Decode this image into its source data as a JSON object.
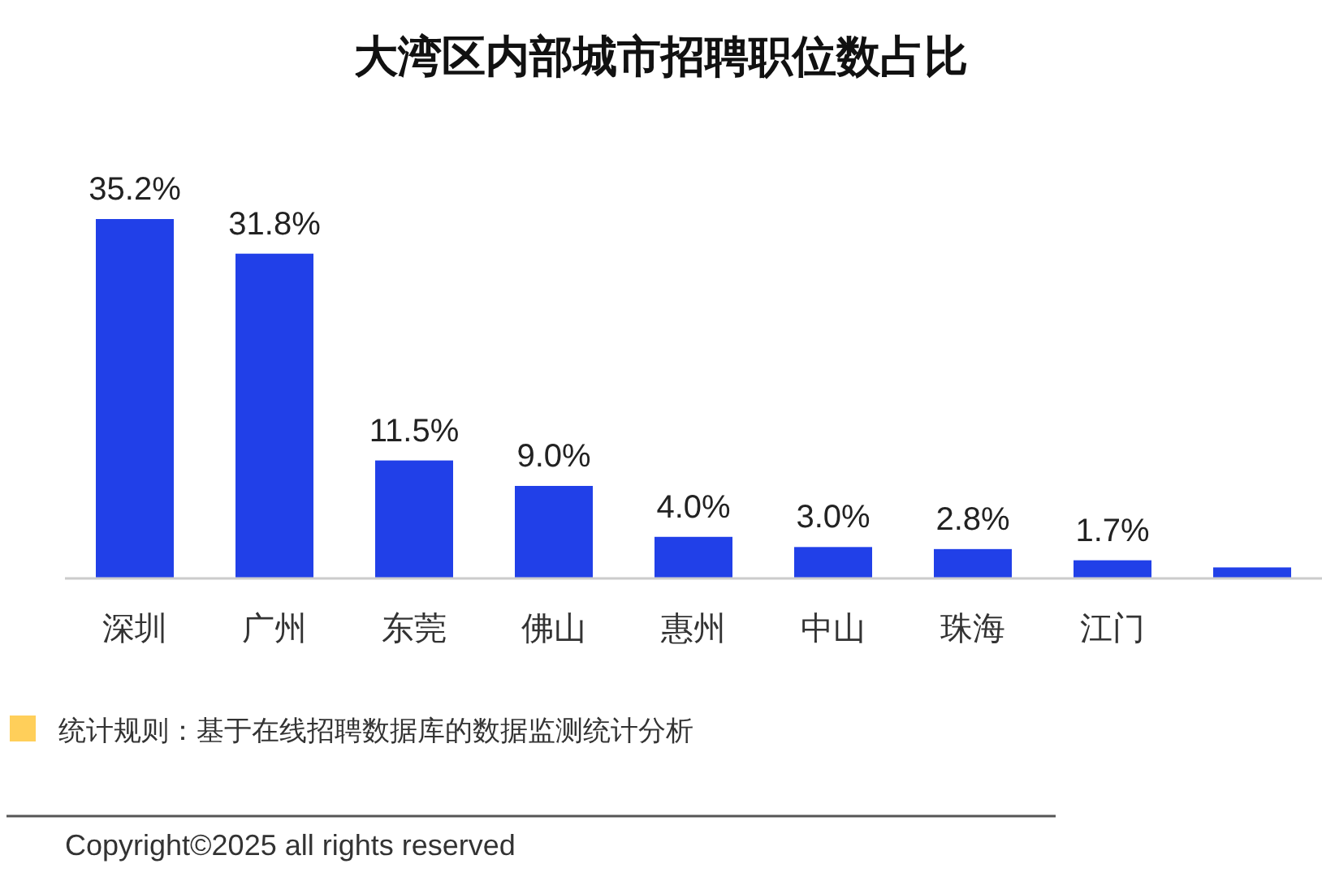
{
  "chart_data": {
    "type": "bar",
    "title": "大湾区内部城市招聘职位数占比",
    "categories": [
      "深圳",
      "广州",
      "东莞",
      "佛山",
      "惠州",
      "中山",
      "珠海",
      "江门",
      null
    ],
    "values": [
      35.2,
      31.8,
      11.5,
      9.0,
      4.0,
      3.0,
      2.8,
      1.7,
      1.0
    ],
    "value_labels": [
      "35.2%",
      "31.8%",
      "11.5%",
      "9.0%",
      "4.0%",
      "3.0%",
      "2.8%",
      "1.7%",
      null
    ],
    "color": "#2140e8",
    "annotations": [
      "统计规则：基于在线招聘数据库的数据监测统计分析",
      "Copyright©2025 all rights reserved"
    ]
  }
}
